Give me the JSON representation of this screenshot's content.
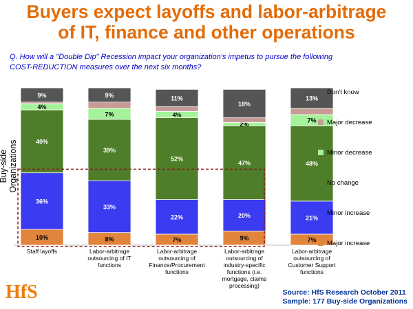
{
  "title_lines": [
    "Buyers expect layoffs and labor-arbitrage",
    "of IT, finance and other operations"
  ],
  "question_lines": [
    "Q. How will a \"Double Dip\" Recession impact your organization's impetus to pursue the following",
    "COST-REDUCTION measures over the next six months?"
  ],
  "y_axis_label": "Buy-side Organizations",
  "logo_text": "HfS",
  "source_lines": [
    "Source:  HfS Research October 2011",
    "Sample: 177 Buy-side Organizations"
  ],
  "colors": {
    "title": "#E36C09",
    "question": "#0000CC",
    "source": "#003399",
    "highlight_box": "#8B1A1A",
    "logo": "#F07C0B"
  },
  "chart_data": {
    "type": "bar",
    "stacked": true,
    "percent": true,
    "legend_position": "right",
    "grid": false,
    "categories": [
      [
        "Staff layoffs"
      ],
      [
        "Labor-arbitrage",
        "outsourcing of IT",
        "functions"
      ],
      [
        "Labor-arbitrage",
        "outsourcing of",
        "Finance/Procurement",
        "functions"
      ],
      [
        "Labor-arbitrage",
        "outsourcing of",
        "industry-specific",
        "functions (i.e.",
        "mortgage, claims",
        "processing)"
      ],
      [
        "Labor-arbitrage",
        "outsourcing of",
        "Customer Support",
        "functions"
      ]
    ],
    "series": [
      {
        "name": "Major increase",
        "color": "#E1843C",
        "values": [
          10,
          8,
          7,
          9,
          7
        ],
        "labels": [
          "10%",
          "8%",
          "7%",
          "9%",
          "7%"
        ],
        "label_color": "#000000"
      },
      {
        "name": "Minor increase",
        "color": "#3B3BF1",
        "values": [
          36,
          33,
          22,
          20,
          21
        ],
        "labels": [
          "36%",
          "33%",
          "22%",
          "20%",
          "21%"
        ],
        "label_color": "#FFFFFF"
      },
      {
        "name": "No change",
        "color": "#4E7E29",
        "values": [
          40,
          39,
          52,
          47,
          48
        ],
        "labels": [
          "40%",
          "39%",
          "52%",
          "47%",
          "48%"
        ],
        "label_color": "#FFFFFF"
      },
      {
        "name": "Minor decrease",
        "color": "#A4F29A",
        "values": [
          4,
          7,
          4,
          2,
          7
        ],
        "labels": [
          "4%",
          "7%",
          "4%",
          "2%",
          "7%"
        ],
        "label_color": "#000000"
      },
      {
        "name": "Major decrease",
        "color": "#C79B96",
        "values": [
          1,
          4,
          3,
          3,
          4
        ],
        "labels": [
          "",
          "",
          "",
          "",
          ""
        ],
        "label_color": "#000000"
      },
      {
        "name": "Don't know",
        "color": "#555555",
        "values": [
          9,
          9,
          11,
          18,
          13
        ],
        "labels": [
          "9%",
          "9%",
          "11%",
          "18%",
          "13%"
        ],
        "label_color": "#FFFFFF"
      }
    ],
    "ylim": [
      0,
      100
    ],
    "highlight": "dashed box around Major increase and Minor increase segments of the first four bars"
  }
}
